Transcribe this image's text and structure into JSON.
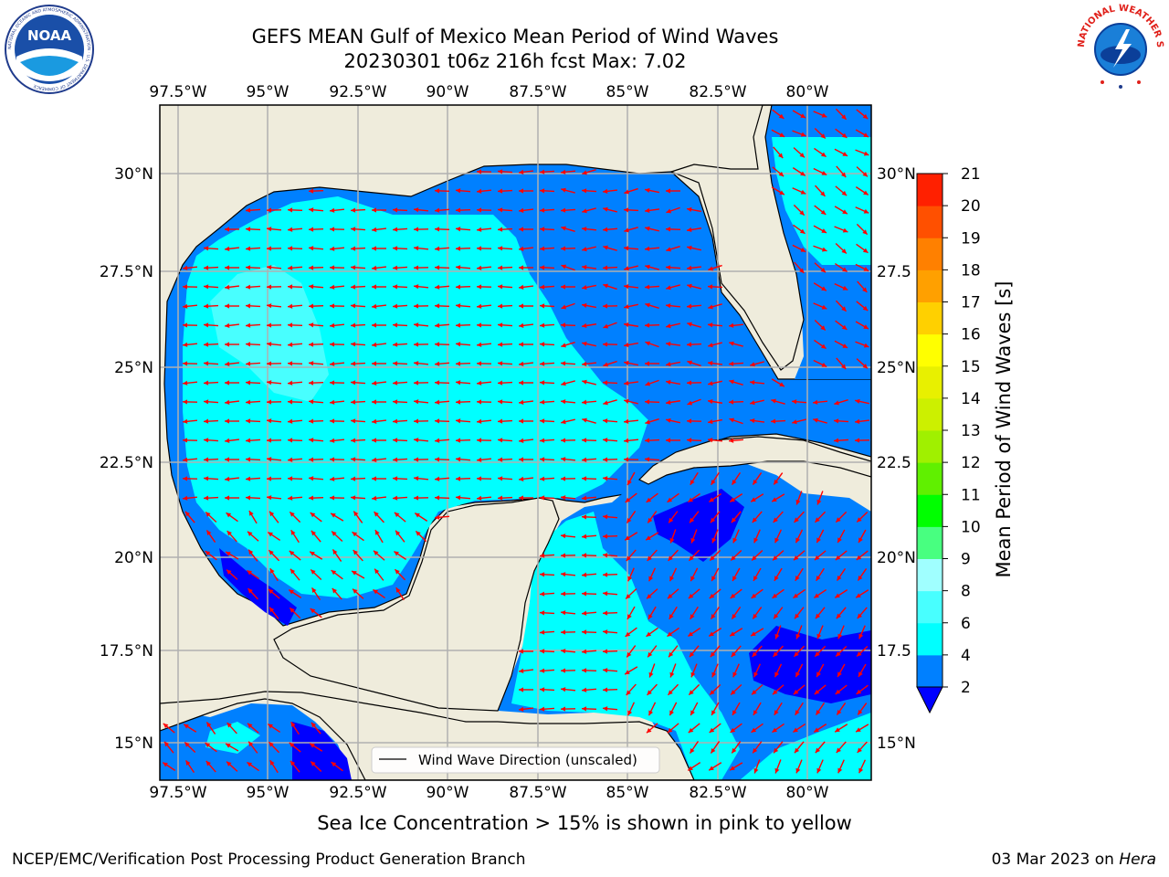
{
  "header": {
    "title_line1": "GEFS MEAN Gulf of Mexico Mean Period of Wind Waves",
    "title_line2": "20230301 t06z 216h fcst   Max: 7.02"
  },
  "logos": {
    "noaa_text": "NOAA",
    "noaa_ring_text": "NATIONAL OCEANIC AND ATMOSPHERIC ADMINISTRATION · U.S. DEPARTMENT OF COMMERCE",
    "nws_ring_text": "NATIONAL WEATHER SERVICE"
  },
  "map": {
    "lon_ticks": [
      "97.5°W",
      "95°W",
      "92.5°W",
      "90°W",
      "87.5°W",
      "85°W",
      "82.5°W",
      "80°W"
    ],
    "lat_ticks_left": [
      "30°N",
      "27.5°N",
      "25°N",
      "22.5°N",
      "20°N",
      "17.5°N",
      "15°N"
    ],
    "lat_ticks_right": [
      "30°N",
      "27.5",
      "25°N",
      "22.5",
      "20°N",
      "17.5",
      "15°N"
    ],
    "legend_label": "Wind Wave Direction (unscaled)",
    "colors": {
      "land": "#efecdc",
      "level_0_2": "#0000ff",
      "level_2_4": "#0080ff",
      "level_4_6": "#00ffff",
      "level_6_8": "#48ffff",
      "arrow": "#ff0000",
      "grid": "#b0b0b0"
    }
  },
  "colorbar": {
    "title": "Mean Period of Wind Waves [s]",
    "ticks": [
      "2",
      "4",
      "6",
      "8",
      "9",
      "10",
      "11",
      "12",
      "13",
      "14",
      "15",
      "16",
      "17",
      "18",
      "19",
      "20",
      "21"
    ],
    "colors": [
      "#0080ff",
      "#00ffff",
      "#48ffff",
      "#a0ffff",
      "#48ff80",
      "#00ff00",
      "#60f000",
      "#a0f000",
      "#ccf000",
      "#e8f000",
      "#ffff00",
      "#ffd000",
      "#ffa000",
      "#ff8000",
      "#ff5000",
      "#ff2000"
    ],
    "extend_color": "#0000ff"
  },
  "notes": {
    "sea_ice": "Sea Ice Concentration > 15% is shown in pink to yellow"
  },
  "footer": {
    "left": "NCEP/EMC/Verification Post Processing Product Generation Branch",
    "date": "03 Mar 2023 on ",
    "machine": "Hera"
  }
}
